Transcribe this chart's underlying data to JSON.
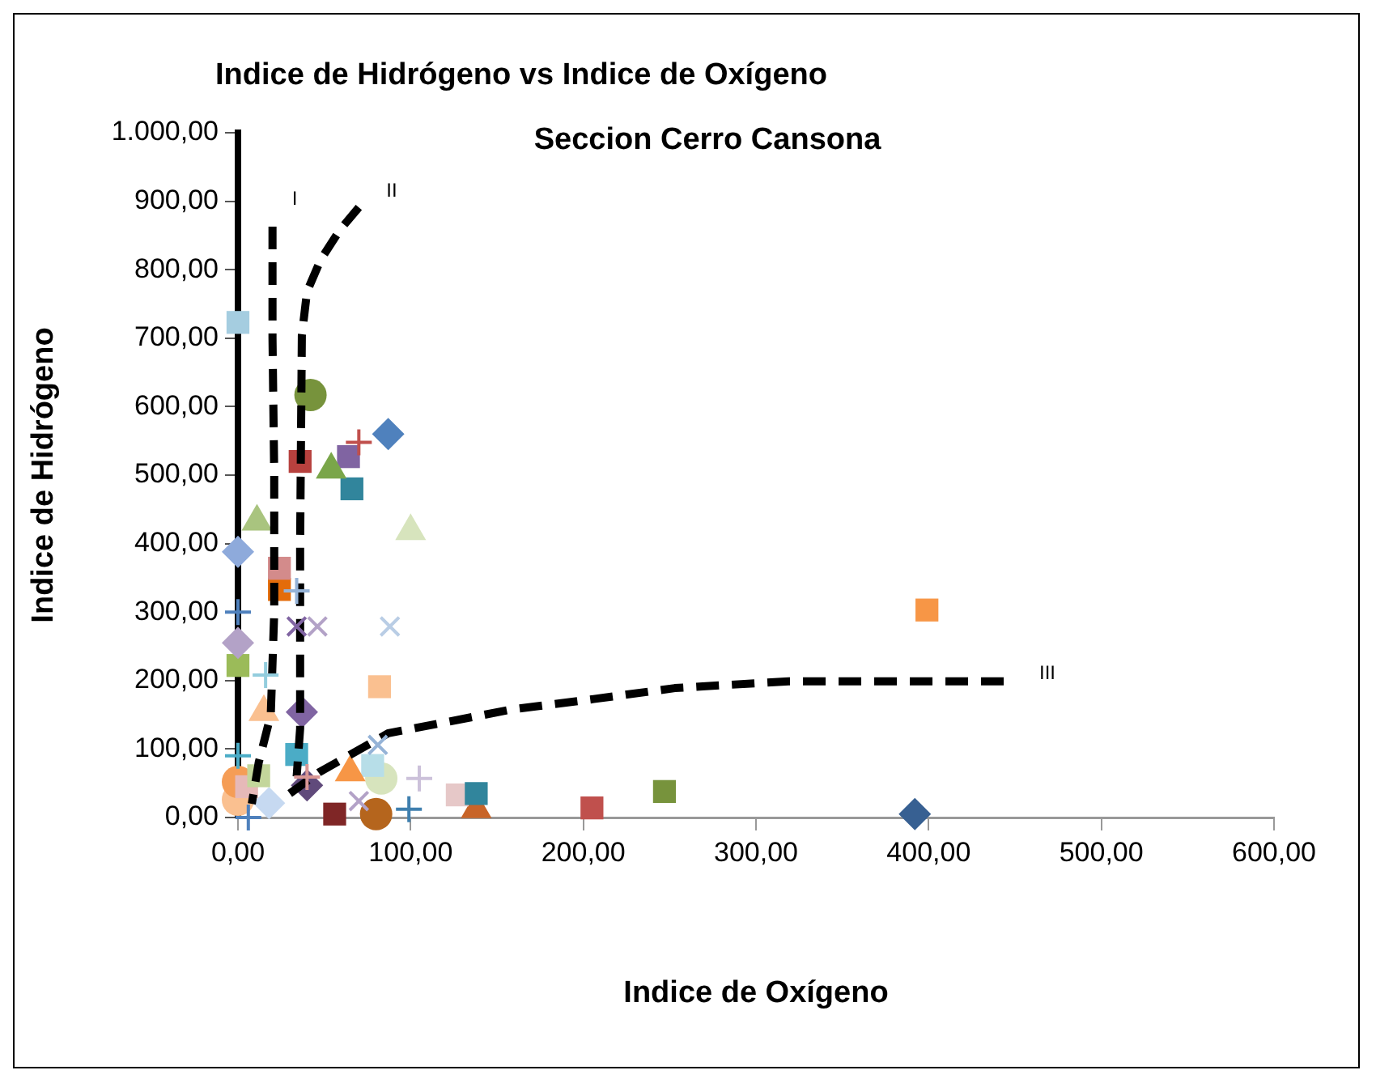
{
  "chart_data": {
    "type": "scatter",
    "title": "Indice de Hidrógeno vs Indice de Oxígeno",
    "subtitle": "Seccion Cerro Cansona",
    "xlabel": "Indice de Oxígeno",
    "ylabel": "Indice de Hidrógeno",
    "xlim": [
      0,
      600
    ],
    "xticks": [
      {
        "value": 0,
        "label": "0,00"
      },
      {
        "value": 100,
        "label": "100,00"
      },
      {
        "value": 200,
        "label": "200,00"
      },
      {
        "value": 300,
        "label": "300,00"
      },
      {
        "value": 400,
        "label": "400,00"
      },
      {
        "value": 500,
        "label": "500,00"
      },
      {
        "value": 600,
        "label": "600,00"
      }
    ],
    "ylim": [
      0,
      1000
    ],
    "yticks": [
      {
        "value": 0,
        "label": "0,00"
      },
      {
        "value": 100,
        "label": "100,00"
      },
      {
        "value": 200,
        "label": "200,00"
      },
      {
        "value": 300,
        "label": "300,00"
      },
      {
        "value": 400,
        "label": "400,00"
      },
      {
        "value": 500,
        "label": "500,00"
      },
      {
        "value": 600,
        "label": "600,00"
      },
      {
        "value": 700,
        "label": "700,00"
      },
      {
        "value": 800,
        "label": "800,00"
      },
      {
        "value": 900,
        "label": "900,00"
      },
      {
        "value": 1000,
        "label": "1.000,00"
      }
    ],
    "grid": false,
    "legend": false,
    "annotations": [
      "I",
      "II",
      "III"
    ],
    "series": [
      {
        "type": "line",
        "color": "#000000",
        "line_style": "dashed",
        "marker": "none",
        "x": [
          20,
          20,
          21,
          21,
          19,
          12,
          8
        ],
        "values": [
          863,
          700,
          500,
          300,
          150,
          80,
          20
        ]
      },
      {
        "type": "line",
        "color": "#000000",
        "line_style": "dashed",
        "marker": "none",
        "x": [
          70,
          59,
          48,
          40,
          37,
          36,
          36,
          34
        ],
        "values": [
          891,
          858,
          815,
          768,
          704,
          400,
          130,
          60
        ]
      },
      {
        "type": "line",
        "color": "#000000",
        "line_style": "dashed",
        "marker": "none",
        "x": [
          30,
          47,
          87,
          159,
          206,
          253,
          319,
          375,
          445
        ],
        "values": [
          35,
          66,
          123,
          158,
          173,
          189,
          199,
          199,
          199
        ]
      },
      {
        "marker": "square",
        "color": "#a5cde0",
        "x": [
          0
        ],
        "values": [
          723
        ]
      },
      {
        "marker": "circle",
        "color": "#77933c",
        "x": [
          42
        ],
        "values": [
          617
        ]
      },
      {
        "marker": "square",
        "color": "#b7413e",
        "x": [
          36
        ],
        "values": [
          520
        ]
      },
      {
        "marker": "triangle",
        "color": "#7aa64a",
        "x": [
          54
        ],
        "values": [
          508
        ]
      },
      {
        "marker": "cross",
        "color": "#c0504d",
        "x": [
          70
        ],
        "values": [
          548
        ]
      },
      {
        "marker": "diamond",
        "color": "#4f81bd",
        "x": [
          87
        ],
        "values": [
          560
        ]
      },
      {
        "marker": "square",
        "color": "#8064a2",
        "x": [
          64
        ],
        "values": [
          527
        ]
      },
      {
        "marker": "square",
        "color": "#31859c",
        "x": [
          66
        ],
        "values": [
          480
        ]
      },
      {
        "marker": "triangle",
        "color": "#a9c47f",
        "x": [
          11
        ],
        "values": [
          432
        ]
      },
      {
        "marker": "triangle",
        "color": "#d7e4bd",
        "x": [
          100
        ],
        "values": [
          418
        ]
      },
      {
        "marker": "diamond",
        "color": "#8eaadb",
        "x": [
          0
        ],
        "values": [
          388
        ]
      },
      {
        "marker": "square",
        "color": "#d38b8b",
        "x": [
          24
        ],
        "values": [
          364
        ]
      },
      {
        "marker": "square",
        "color": "#e46c0a",
        "x": [
          24
        ],
        "values": [
          333
        ]
      },
      {
        "marker": "cross",
        "color": "#95b3d7",
        "x": [
          34
        ],
        "values": [
          331
        ]
      },
      {
        "marker": "cross",
        "color": "#4f81bd",
        "x": [
          0
        ],
        "values": [
          300
        ]
      },
      {
        "marker": "x",
        "color": "#8064a2",
        "x": [
          34
        ],
        "values": [
          279
        ]
      },
      {
        "marker": "x",
        "color": "#b3a2c7",
        "x": [
          46
        ],
        "values": [
          279
        ]
      },
      {
        "marker": "x",
        "color": "#b9cde5",
        "x": [
          88
        ],
        "values": [
          279
        ]
      },
      {
        "marker": "diamond",
        "color": "#b3a2c7",
        "x": [
          0
        ],
        "values": [
          255
        ]
      },
      {
        "marker": "square",
        "color": "#9bbb59",
        "x": [
          0
        ],
        "values": [
          222
        ]
      },
      {
        "marker": "cross",
        "color": "#93cddd",
        "x": [
          16
        ],
        "values": [
          208
        ]
      },
      {
        "marker": "square",
        "color": "#fac090",
        "x": [
          82
        ],
        "values": [
          191
        ]
      },
      {
        "marker": "triangle",
        "color": "#fac090",
        "x": [
          15
        ],
        "values": [
          154
        ]
      },
      {
        "marker": "diamond",
        "color": "#8064a2",
        "x": [
          37
        ],
        "values": [
          154
        ]
      },
      {
        "marker": "square",
        "color": "#4bacc6",
        "x": [
          34
        ],
        "values": [
          92
        ]
      },
      {
        "marker": "x",
        "color": "#95b3d7",
        "x": [
          81
        ],
        "values": [
          106
        ]
      },
      {
        "marker": "cross",
        "color": "#4bacc6",
        "x": [
          0
        ],
        "values": [
          90
        ]
      },
      {
        "marker": "square",
        "color": "#c3d69b",
        "x": [
          12
        ],
        "values": [
          61
        ]
      },
      {
        "marker": "diamond",
        "color": "#604a7b",
        "x": [
          40
        ],
        "values": [
          47
        ]
      },
      {
        "marker": "cross",
        "color": "#d99694",
        "x": [
          40
        ],
        "values": [
          59
        ]
      },
      {
        "marker": "triangle",
        "color": "#f79646",
        "x": [
          65
        ],
        "values": [
          66
        ]
      },
      {
        "marker": "square",
        "color": "#b7dee8",
        "x": [
          78
        ],
        "values": [
          76
        ]
      },
      {
        "marker": "circle",
        "color": "#d7e4bd",
        "x": [
          83
        ],
        "values": [
          57
        ]
      },
      {
        "marker": "cross",
        "color": "#ccc1da",
        "x": [
          105
        ],
        "values": [
          57
        ]
      },
      {
        "marker": "circle",
        "color": "#f59d56",
        "x": [
          0
        ],
        "values": [
          52
        ]
      },
      {
        "marker": "circle",
        "color": "#fac090",
        "x": [
          0
        ],
        "values": [
          26
        ]
      },
      {
        "marker": "square",
        "color": "#e6b9b8",
        "x": [
          5
        ],
        "values": [
          45
        ]
      },
      {
        "marker": "diamond",
        "color": "#c6d9f1",
        "x": [
          18
        ],
        "values": [
          21
        ]
      },
      {
        "marker": "square",
        "color": "#7f2626",
        "x": [
          56
        ],
        "values": [
          5
        ]
      },
      {
        "marker": "circle",
        "color": "#b5651d",
        "x": [
          80
        ],
        "values": [
          5
        ]
      },
      {
        "marker": "x",
        "color": "#b3a2c7",
        "x": [
          70
        ],
        "values": [
          24
        ]
      },
      {
        "marker": "cross",
        "color": "#3f7fae",
        "x": [
          99
        ],
        "values": [
          12
        ]
      },
      {
        "marker": "square",
        "color": "#31859c",
        "x": [
          138
        ],
        "values": [
          35
        ]
      },
      {
        "marker": "square",
        "color": "#e6c8c8",
        "x": [
          127
        ],
        "values": [
          33
        ]
      },
      {
        "marker": "triangle",
        "color": "#c86428",
        "x": [
          138
        ],
        "values": [
          12
        ]
      },
      {
        "marker": "cross",
        "color": "#4f81bd",
        "x": [
          6
        ],
        "values": [
          0
        ]
      },
      {
        "marker": "square",
        "color": "#c0504d",
        "x": [
          205
        ],
        "values": [
          14
        ]
      },
      {
        "marker": "square",
        "color": "#77933c",
        "x": [
          247
        ],
        "values": [
          38
        ]
      },
      {
        "marker": "square",
        "color": "#f79646",
        "x": [
          399
        ],
        "values": [
          303
        ]
      },
      {
        "marker": "diamond",
        "color": "#376092",
        "x": [
          392
        ],
        "values": [
          5
        ]
      }
    ]
  }
}
